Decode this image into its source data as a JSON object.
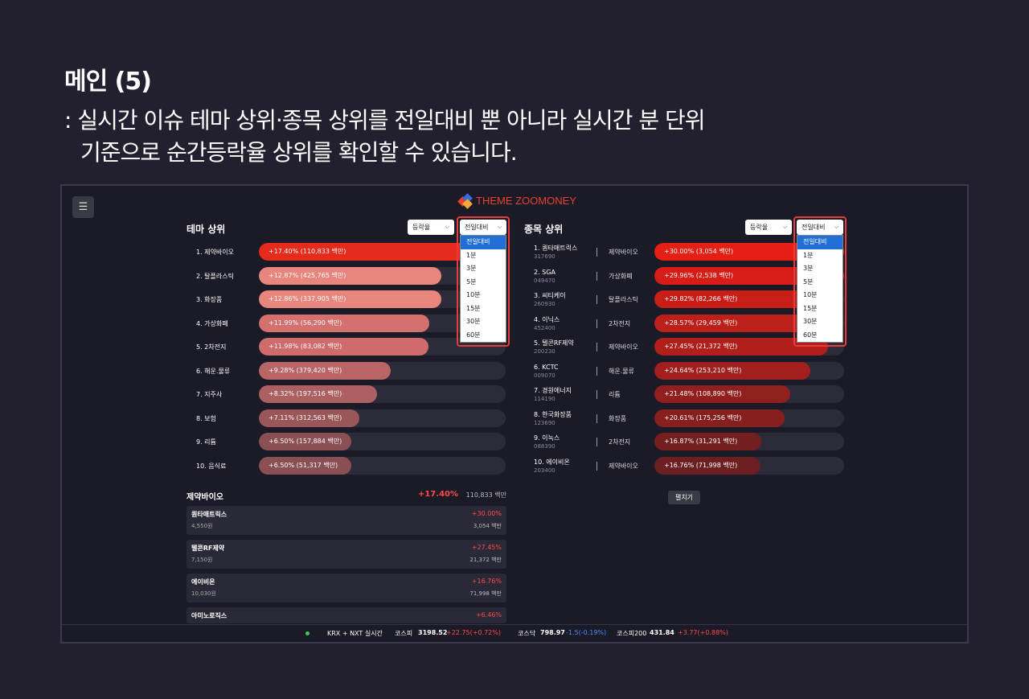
{
  "slide": {
    "title": "메인 (5)",
    "desc_line1": ": 실시간 이슈 테마 상위·종목 상위를 전일대비 뿐 아니라 실시간 분 단위",
    "desc_line2": "기준으로 순간등락율 상위를 확인할 수 있습니다."
  },
  "app": {
    "menu_icon": "☰",
    "logo_text": "THEME ZOOMONEY",
    "colors": {
      "accent": "#e8412e",
      "up": "#ff4a4a",
      "down": "#4a8bff",
      "dropdown_selected": "#1f6fd6"
    }
  },
  "theme_panel": {
    "title": "테마 상위",
    "sort_select": "등락율",
    "period_select": "전일대비",
    "period_options": [
      "전일대비",
      "1분",
      "3분",
      "5분",
      "10분",
      "15분",
      "30분",
      "60분"
    ],
    "items": [
      {
        "name": "1. 제약바이오",
        "label": "+17.40% (110,833 백만)",
        "value": 17.4,
        "color": "#e62a1c"
      },
      {
        "name": "2. 탈플라스틱",
        "label": "+12.87% (425,765 백만)",
        "value": 12.87,
        "color": "#e8857c"
      },
      {
        "name": "3. 화장품",
        "label": "+12.86% (337,905 백만)",
        "value": 12.86,
        "color": "#e8857c"
      },
      {
        "name": "4. 가상화폐",
        "label": "+11.99% (56,290 백만)",
        "value": 11.99,
        "color": "#d4706e"
      },
      {
        "name": "5. 2차전지",
        "label": "+11.98% (83,082 백만)",
        "value": 11.98,
        "color": "#cf6b6a"
      },
      {
        "name": "6. 해운.물류",
        "label": "+9.28% (379,420 백만)",
        "value": 9.28,
        "color": "#b96566"
      },
      {
        "name": "7. 지주사",
        "label": "+8.32% (197,516 백만)",
        "value": 8.32,
        "color": "#ad6062"
      },
      {
        "name": "8. 보험",
        "label": "+7.11% (312,563 백만)",
        "value": 7.11,
        "color": "#9a5759"
      },
      {
        "name": "9. 리튬",
        "label": "+6.50% (157,884 백만)",
        "value": 6.5,
        "color": "#8a4f53"
      },
      {
        "name": "10. 음식료",
        "label": "+6.50% (51,317 백만)",
        "value": 6.5,
        "color": "#8a4f53"
      }
    ]
  },
  "stock_panel": {
    "title": "종목 상위",
    "sort_select": "등락율",
    "period_select": "전일대비",
    "period_options": [
      "전일대비",
      "1분",
      "3분",
      "5분",
      "10분",
      "15분",
      "30분",
      "60분"
    ],
    "items": [
      {
        "name": "1. 퀀타매트릭스",
        "code": "317690",
        "theme": "제약바이오",
        "label": "+30.00% (3,054 백만)",
        "value": 30.0,
        "color": "#e61f14"
      },
      {
        "name": "2. SGA",
        "code": "049470",
        "theme": "가상화폐",
        "label": "+29.96% (2,538 백만)",
        "value": 29.96,
        "color": "#d81d16"
      },
      {
        "name": "3. 씨티케이",
        "code": "260930",
        "theme": "탈플라스틱",
        "label": "+29.82% (82,266 백만)",
        "value": 29.82,
        "color": "#c91e18"
      },
      {
        "name": "4. 이닉스",
        "code": "452400",
        "theme": "2차전지",
        "label": "+28.57% (29,459 백만)",
        "value": 28.57,
        "color": "#bd1f1a"
      },
      {
        "name": "5. 텔콘RF제약",
        "code": "200230",
        "theme": "제약바이오",
        "label": "+27.45% (21,372 백만)",
        "value": 27.45,
        "color": "#b01f1b"
      },
      {
        "name": "6. KCTC",
        "code": "009070",
        "theme": "해운.물류",
        "label": "+24.64% (253,210 백만)",
        "value": 24.64,
        "color": "#a11f1c"
      },
      {
        "name": "7. 경원에너지",
        "code": "114190",
        "theme": "리튬",
        "label": "+21.48% (108,890 백만)",
        "value": 21.48,
        "color": "#911f1d"
      },
      {
        "name": "8. 한국화장품",
        "code": "123690",
        "theme": "화장품",
        "label": "+20.61% (175,256 백만)",
        "value": 20.61,
        "color": "#861f1e"
      },
      {
        "name": "9. 이녹스",
        "code": "088390",
        "theme": "2차전지",
        "label": "+16.87% (31,291 백만)",
        "value": 16.87,
        "color": "#731f20"
      },
      {
        "name": "10. 에이비온",
        "code": "203400",
        "theme": "제약바이오",
        "label": "+16.76% (71,998 백만)",
        "value": 16.76,
        "color": "#6b1f21"
      }
    ],
    "expand_label": "펼치기"
  },
  "detail": {
    "theme_name": "제약바이오",
    "change": "+17.40%",
    "amount": "110,833 백만",
    "stocks": [
      {
        "name": "퀀타매트릭스",
        "price": "4,550원",
        "change": "+30.00%",
        "amount": "3,054 백만"
      },
      {
        "name": "텔콘RF제약",
        "price": "7,150원",
        "change": "+27.45%",
        "amount": "21,372 백만"
      },
      {
        "name": "에이비온",
        "price": "10,030원",
        "change": "+16.76%",
        "amount": "71,998 백만"
      },
      {
        "name": "아미노로직스",
        "price": "",
        "change": "+6.46%",
        "amount": ""
      }
    ]
  },
  "ticker": {
    "market": "KRX + NXT 실시간",
    "kospi_label": "코스피",
    "kospi_value": "3198.52",
    "kospi_change": "+22.75(+0.72%)",
    "kosdaq_label": "코스닥",
    "kosdaq_value": "798.97",
    "kosdaq_change": "-1.5(-0.19%)",
    "kospi200_label": "코스피200",
    "kospi200_value": "431.84",
    "kospi200_change": "+3.77(+0.88%)"
  }
}
